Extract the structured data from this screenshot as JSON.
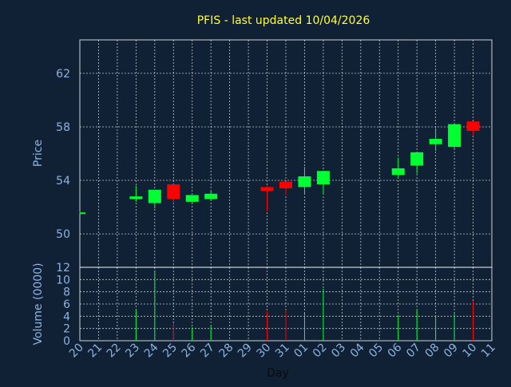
{
  "chart_data": {
    "type": "candlestick",
    "title": "PFIS - last updated 10/04/2026",
    "price_panel": {
      "ylabel": "Price",
      "ylim": [
        47.5,
        64.5
      ],
      "yticks": [
        50,
        54,
        58,
        62
      ]
    },
    "volume_panel": {
      "ylabel": "Volume (0000)",
      "ylim": [
        0,
        12
      ],
      "yticks": [
        0,
        2,
        4,
        6,
        8,
        10,
        12
      ]
    },
    "xlabel": "Day",
    "x_tick_labels": [
      "20",
      "21",
      "22",
      "23",
      "24",
      "25",
      "26",
      "27",
      "28",
      "29",
      "30",
      "31",
      "01",
      "02",
      "03",
      "04",
      "05",
      "06",
      "07",
      "08",
      "09",
      "10",
      "11"
    ],
    "candles": [
      {
        "day": "20",
        "open": 51.6,
        "high": 51.7,
        "low": 51.5,
        "close": 51.6,
        "volume": 0,
        "partial": true
      },
      {
        "day": "23",
        "open": 52.6,
        "high": 53.6,
        "low": 52.4,
        "close": 52.8,
        "volume": 5.2
      },
      {
        "day": "24",
        "open": 52.3,
        "high": 53.3,
        "low": 51.9,
        "close": 53.3,
        "volume": 11.5
      },
      {
        "day": "25",
        "open": 53.7,
        "high": 53.7,
        "low": 52.3,
        "close": 52.6,
        "volume": 2.8
      },
      {
        "day": "26",
        "open": 52.4,
        "high": 52.9,
        "low": 52.3,
        "close": 52.9,
        "volume": 2.2
      },
      {
        "day": "27",
        "open": 52.6,
        "high": 53.2,
        "low": 52.5,
        "close": 53.0,
        "volume": 2.4
      },
      {
        "day": "30",
        "open": 53.5,
        "high": 53.6,
        "low": 51.7,
        "close": 53.2,
        "volume": 4.8
      },
      {
        "day": "31",
        "open": 53.9,
        "high": 53.9,
        "low": 52.9,
        "close": 53.4,
        "volume": 5.0
      },
      {
        "day": "01",
        "open": 53.5,
        "high": 55.0,
        "low": 53.0,
        "close": 54.3,
        "volume": 4.5
      },
      {
        "day": "02",
        "open": 53.7,
        "high": 54.7,
        "low": 53.0,
        "close": 54.7,
        "volume": 8.5
      },
      {
        "day": "06",
        "open": 54.4,
        "high": 55.7,
        "low": 54.2,
        "close": 54.9,
        "volume": 4.2
      },
      {
        "day": "07",
        "open": 55.1,
        "high": 56.1,
        "low": 54.5,
        "close": 56.1,
        "volume": 5.1
      },
      {
        "day": "08",
        "open": 56.7,
        "high": 57.9,
        "low": 56.2,
        "close": 57.1,
        "volume": 4.0
      },
      {
        "day": "09",
        "open": 56.5,
        "high": 58.2,
        "low": 56.4,
        "close": 58.2,
        "volume": 4.4
      },
      {
        "day": "10",
        "open": 58.4,
        "high": 58.4,
        "low": 57.4,
        "close": 57.7,
        "volume": 6.5
      }
    ],
    "colors": {
      "up": "#00ff33",
      "down": "#ff0000",
      "background": "#102035",
      "text": "#8fb3e0",
      "title": "#ffff33"
    },
    "grid": true
  }
}
